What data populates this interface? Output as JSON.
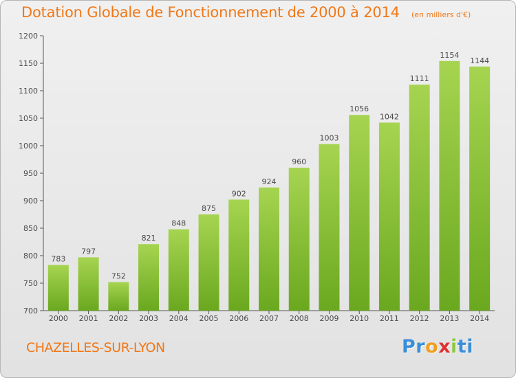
{
  "colors": {
    "accent": "#f07818",
    "bar_light": "#a6d451",
    "bar_dark": "#6aa81f",
    "logo": [
      "#3a8fd8",
      "#3a8fd8",
      "#f0a020",
      "#e03030",
      "#8ac83a",
      "#3a8fd8"
    ]
  },
  "chart_data": {
    "type": "bar",
    "title": "Dotation Globale de Fonctionnement de 2000 à 2014",
    "subtitle": "(en milliers d'€)",
    "xlabel": "",
    "ylabel": "",
    "categories": [
      "2000",
      "2001",
      "2002",
      "2003",
      "2004",
      "2005",
      "2006",
      "2007",
      "2008",
      "2009",
      "2010",
      "2011",
      "2012",
      "2013",
      "2014"
    ],
    "values": [
      783,
      797,
      752,
      821,
      848,
      875,
      902,
      924,
      960,
      1003,
      1056,
      1042,
      1111,
      1154,
      1144
    ],
    "ylim": [
      700,
      1200
    ],
    "yticks": [
      700,
      750,
      800,
      850,
      900,
      950,
      1000,
      1050,
      1100,
      1150,
      1200
    ],
    "grid": false,
    "legend": "none",
    "data_labels": true
  },
  "footer": {
    "city": "CHAZELLES-SUR-LYON",
    "logo_letters": [
      "P",
      "r",
      "o",
      "x",
      "i",
      "t",
      "i"
    ]
  }
}
